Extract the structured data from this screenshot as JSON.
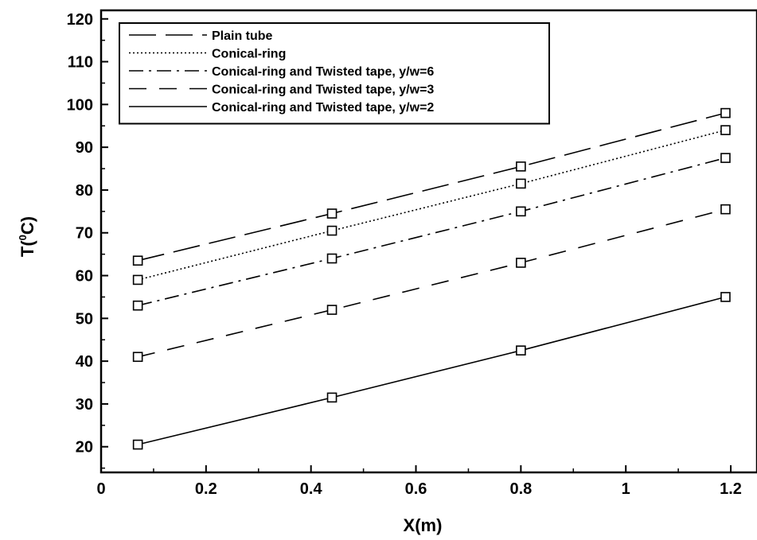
{
  "chart_data": {
    "type": "line",
    "title": "",
    "xlabel": "X(m)",
    "ylabel_main": "T(",
    "ylabel_sup": "0",
    "ylabel_unit": "C)",
    "xlim": [
      0,
      1.25
    ],
    "ylim": [
      14,
      122
    ],
    "x_ticks": [
      0,
      0.2,
      0.4,
      0.6,
      0.8,
      1,
      1.2
    ],
    "x_tick_labels": [
      "0",
      "0.2",
      "0.4",
      "0.6",
      "0.8",
      "1",
      "1.2"
    ],
    "y_ticks": [
      20,
      30,
      40,
      50,
      60,
      70,
      80,
      90,
      100,
      110,
      120
    ],
    "y_tick_labels": [
      "20",
      "30",
      "40",
      "50",
      "60",
      "70",
      "80",
      "90",
      "100",
      "110",
      "120"
    ],
    "grid": false,
    "legend_position": "top-left",
    "marker": "square-open",
    "line_color": "#000000",
    "x": [
      0.07,
      0.44,
      0.8,
      1.19
    ],
    "series": [
      {
        "name": "Plain tube",
        "values": [
          63.5,
          74.5,
          85.5,
          98
        ],
        "dash": "long-dash"
      },
      {
        "name": "Conical-ring",
        "values": [
          59,
          70.5,
          81.5,
          94
        ],
        "dash": "dotted"
      },
      {
        "name": "Conical-ring and Twisted tape, y/w=6",
        "values": [
          53,
          64,
          75,
          87.5
        ],
        "dash": "dash-dot"
      },
      {
        "name": "Conical-ring and Twisted tape, y/w=3",
        "values": [
          41,
          52,
          63,
          75.5
        ],
        "dash": "dashed"
      },
      {
        "name": "Conical-ring and Twisted tape, y/w=2",
        "values": [
          20.5,
          31.5,
          42.5,
          55
        ],
        "dash": "solid"
      }
    ]
  }
}
